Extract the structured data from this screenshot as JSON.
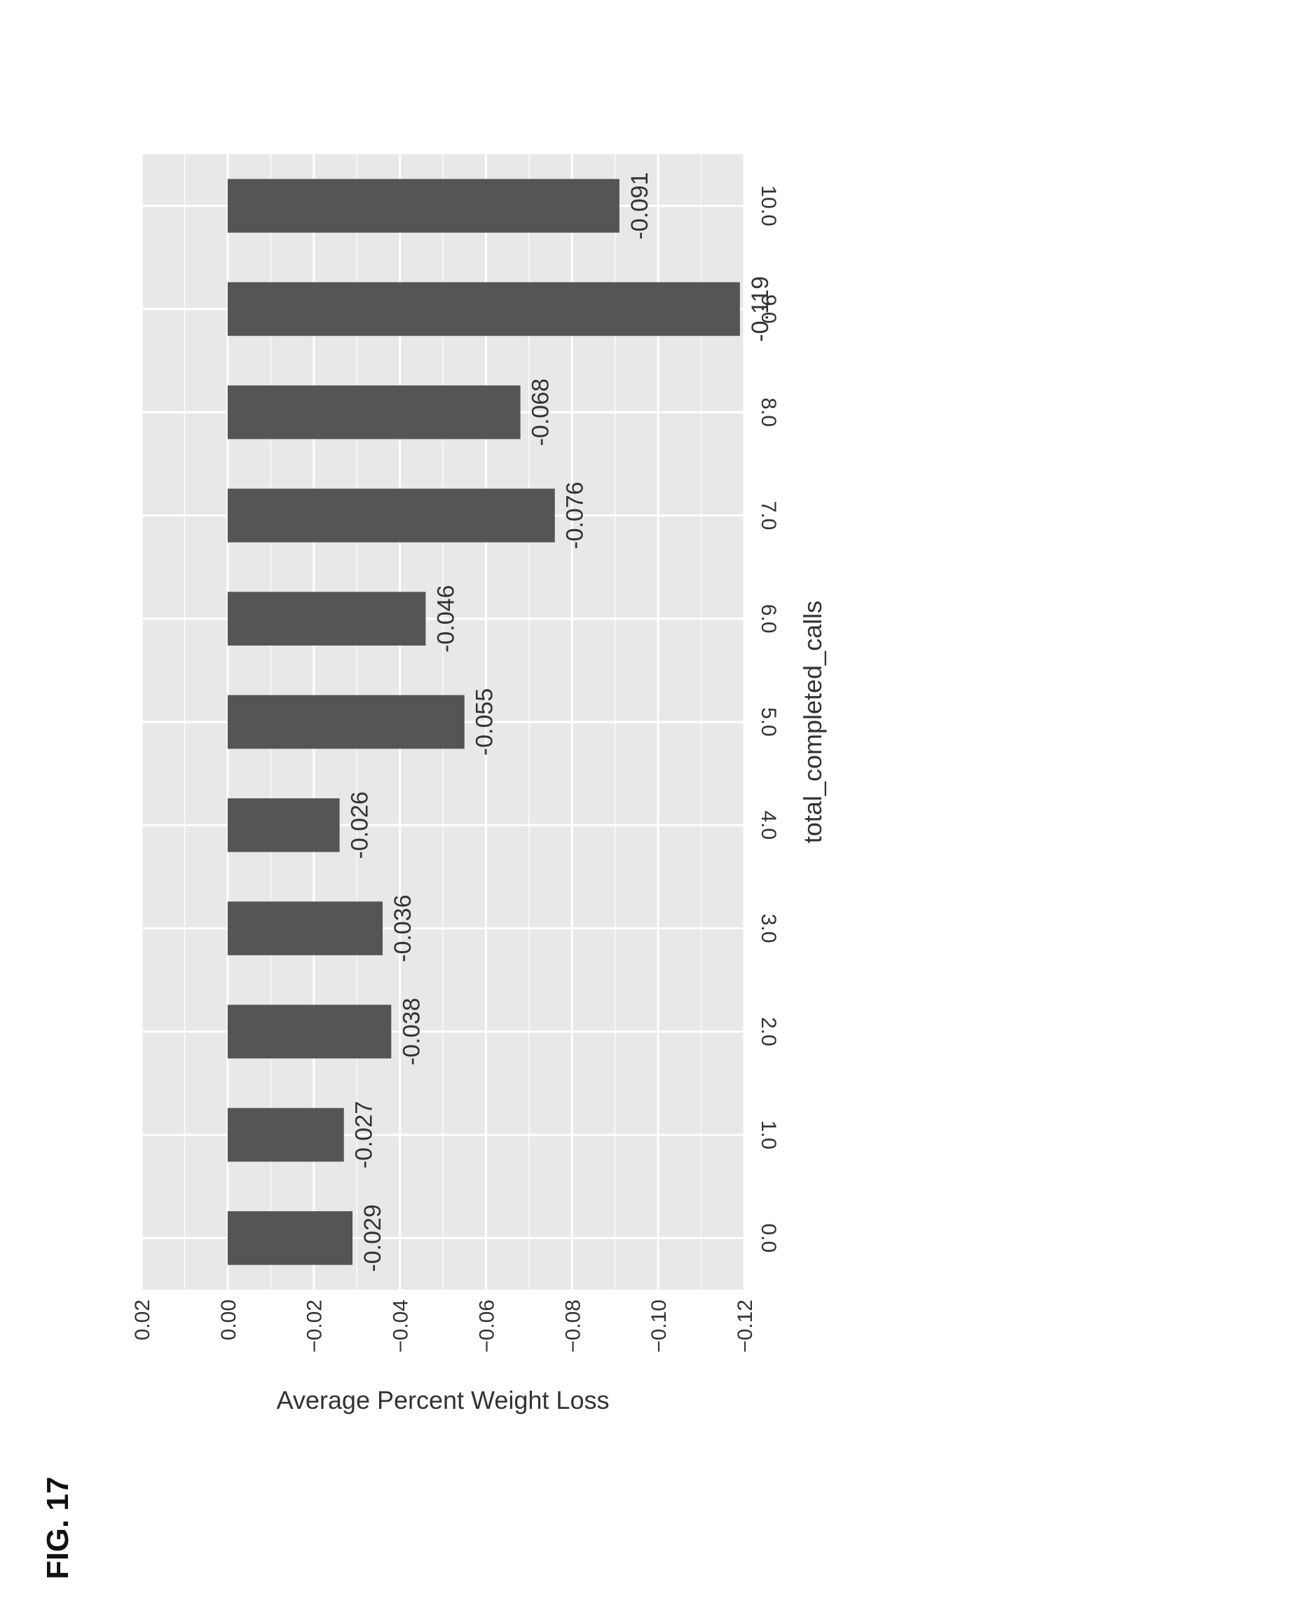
{
  "figure_label": "FIG. 17",
  "colors": {
    "panel": "#e8e8e8",
    "grid": "#ffffff",
    "bar": "#555555",
    "text": "#333333"
  },
  "chart_data": {
    "type": "bar",
    "title": "",
    "xlabel": "total_completed_calls",
    "ylabel": "Average Percent Weight Loss",
    "categories": [
      "0.0",
      "1.0",
      "2.0",
      "3.0",
      "4.0",
      "5.0",
      "6.0",
      "7.0",
      "8.0",
      "9.0",
      "10.0"
    ],
    "values": [
      -0.029,
      -0.027,
      -0.038,
      -0.036,
      -0.026,
      -0.055,
      -0.046,
      -0.076,
      -0.068,
      -0.119,
      -0.091
    ],
    "data_labels": [
      "-0.029",
      "-0.027",
      "-0.038",
      "-0.036",
      "-0.026",
      "-0.055",
      "-0.046",
      "-0.076",
      "-0.068",
      "-0.119",
      "-0.091"
    ],
    "ylim": [
      -0.12,
      0.02
    ],
    "yticks": [
      0.02,
      0.0,
      -0.02,
      -0.04,
      -0.06,
      -0.08,
      -0.1,
      -0.12
    ],
    "ytick_labels": [
      "0.02",
      "0.00",
      "−0.02",
      "−0.04",
      "−0.06",
      "−0.08",
      "−0.10",
      "−0.12"
    ],
    "grid": true,
    "orientation": "rotated 90 degrees on page"
  }
}
